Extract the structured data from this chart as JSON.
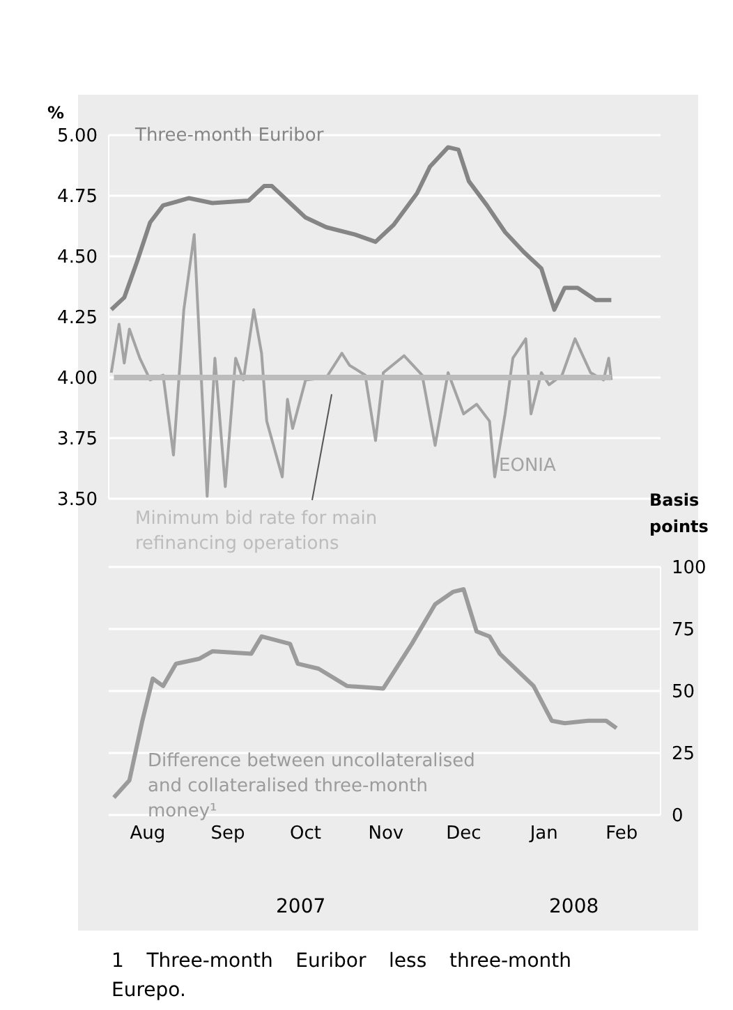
{
  "chart_data": [
    {
      "type": "line",
      "ylabel": "%",
      "xlim": [
        "2007-08-01",
        "2008-03-01"
      ],
      "ylim": [
        3.5,
        5
      ],
      "yticks": [
        {
          "value": 3.5,
          "label": "3.50"
        },
        {
          "value": 3.75,
          "label": "3.75"
        },
        {
          "value": 4,
          "label": "4.00"
        },
        {
          "value": 4.25,
          "label": "4.25"
        },
        {
          "value": 4.5,
          "label": "4.50"
        },
        {
          "value": 4.75,
          "label": "4.75"
        },
        {
          "value": 5,
          "label": "5.00"
        }
      ],
      "grid": "y",
      "tick_labels": "y",
      "series": [
        {
          "name": "Three-month Euribor",
          "color": "#858585",
          "x": [
            "2007-08-02",
            "2007-08-07",
            "2007-08-12",
            "2007-08-17",
            "2007-08-22",
            "2007-09-01",
            "2007-09-10",
            "2007-09-24",
            "2007-09-30",
            "2007-10-03",
            "2007-10-10",
            "2007-10-16",
            "2007-10-24",
            "2007-11-04",
            "2007-11-12",
            "2007-11-19",
            "2007-11-28",
            "2007-12-03",
            "2007-12-10",
            "2007-12-14",
            "2007-12-18",
            "2007-12-25",
            "2008-01-01",
            "2008-01-08",
            "2008-01-15",
            "2008-01-20",
            "2008-01-24",
            "2008-01-29",
            "2008-02-05",
            "2008-02-11"
          ],
          "values": [
            4.28,
            4.33,
            4.48,
            4.64,
            4.71,
            4.74,
            4.72,
            4.73,
            4.79,
            4.79,
            4.72,
            4.66,
            4.62,
            4.59,
            4.56,
            4.63,
            4.76,
            4.87,
            4.95,
            4.94,
            4.81,
            4.71,
            4.6,
            4.52,
            4.45,
            4.28,
            4.37,
            4.37,
            4.32,
            4.32
          ]
        },
        {
          "name": "EONIA",
          "color": "#a3a3a3",
          "x": [
            "2007-08-02",
            "2007-08-05",
            "2007-08-07",
            "2007-08-09",
            "2007-08-13",
            "2007-08-17",
            "2007-08-22",
            "2007-08-26",
            "2007-08-30",
            "2007-09-03",
            "2007-09-08",
            "2007-09-11",
            "2007-09-15",
            "2007-09-19",
            "2007-09-22",
            "2007-09-26",
            "2007-09-29",
            "2007-10-01",
            "2007-10-07",
            "2007-10-09",
            "2007-10-11",
            "2007-10-16",
            "2007-10-24",
            "2007-10-30",
            "2007-11-02",
            "2007-11-08",
            "2007-11-12",
            "2007-11-15",
            "2007-11-23",
            "2007-11-30",
            "2007-12-05",
            "2007-12-10",
            "2007-12-16",
            "2007-12-21",
            "2007-12-26",
            "2007-12-28",
            "2008-01-01",
            "2008-01-04",
            "2008-01-09",
            "2008-01-11",
            "2008-01-15",
            "2008-01-18",
            "2008-01-23",
            "2008-01-28",
            "2008-02-03",
            "2008-02-08",
            "2008-02-10",
            "2008-02-11"
          ],
          "values": [
            4.02,
            4.22,
            4.06,
            4.2,
            4.08,
            3.99,
            4.01,
            3.68,
            4.28,
            4.59,
            3.51,
            4.08,
            3.55,
            4.08,
            3.99,
            4.28,
            4.1,
            3.82,
            3.59,
            3.91,
            3.79,
            3.99,
            4,
            4.1,
            4.05,
            4.01,
            3.74,
            4.02,
            4.09,
            4.01,
            3.72,
            4.02,
            3.85,
            3.89,
            3.82,
            3.59,
            3.85,
            4.08,
            4.16,
            3.85,
            4.02,
            3.97,
            4.01,
            4.16,
            4.02,
            3.99,
            4.08,
            3.99
          ]
        },
        {
          "name": "Minimum bid rate for main refinancing operations",
          "color": "#bcbcbc",
          "x": [
            "2007-08-03",
            "2008-02-11"
          ],
          "values": [
            4,
            4
          ]
        }
      ]
    },
    {
      "type": "line",
      "y2label": "Basis points",
      "xlim": [
        "2007-08-01",
        "2008-03-01"
      ],
      "xticks": [
        {
          "value": "2007-08-16",
          "label": "Aug"
        },
        {
          "value": "2007-09-16",
          "label": "Sep"
        },
        {
          "value": "2007-10-16",
          "label": "Oct"
        },
        {
          "value": "2007-11-16",
          "label": "Nov"
        },
        {
          "value": "2007-12-16",
          "label": "Dec"
        },
        {
          "value": "2008-01-16",
          "label": "Jan"
        },
        {
          "value": "2008-02-15",
          "label": "Feb"
        }
      ],
      "y2lim": [
        0,
        100
      ],
      "y2ticks": [
        0,
        25,
        50,
        75,
        100
      ],
      "grid": "y",
      "annotations": [
        "2007",
        "2008",
        "1 Three-month Euribor less three-month Eurepo."
      ],
      "series": [
        {
          "name": "Difference between uncollateralised and collateralised three-month money¹",
          "color": "#9b9b9b",
          "axis": "y2",
          "x": [
            "2007-08-03",
            "2007-08-09",
            "2007-08-14",
            "2007-08-18",
            "2007-08-22",
            "2007-08-27",
            "2007-09-05",
            "2007-09-10",
            "2007-09-25",
            "2007-09-29",
            "2007-10-10",
            "2007-10-13",
            "2007-10-21",
            "2007-11-01",
            "2007-11-15",
            "2007-11-26",
            "2007-12-05",
            "2007-12-12",
            "2007-12-16",
            "2007-12-21",
            "2007-12-26",
            "2007-12-30",
            "2008-01-12",
            "2008-01-19",
            "2008-01-24",
            "2008-02-02",
            "2008-02-09",
            "2008-02-13"
          ],
          "values": [
            7,
            14,
            38,
            55,
            52,
            61,
            63,
            66,
            65,
            72,
            69,
            61,
            59,
            52,
            51,
            69,
            85,
            90,
            91,
            74,
            72,
            65,
            52,
            38,
            37,
            38,
            38,
            35
          ]
        }
      ]
    }
  ]
}
